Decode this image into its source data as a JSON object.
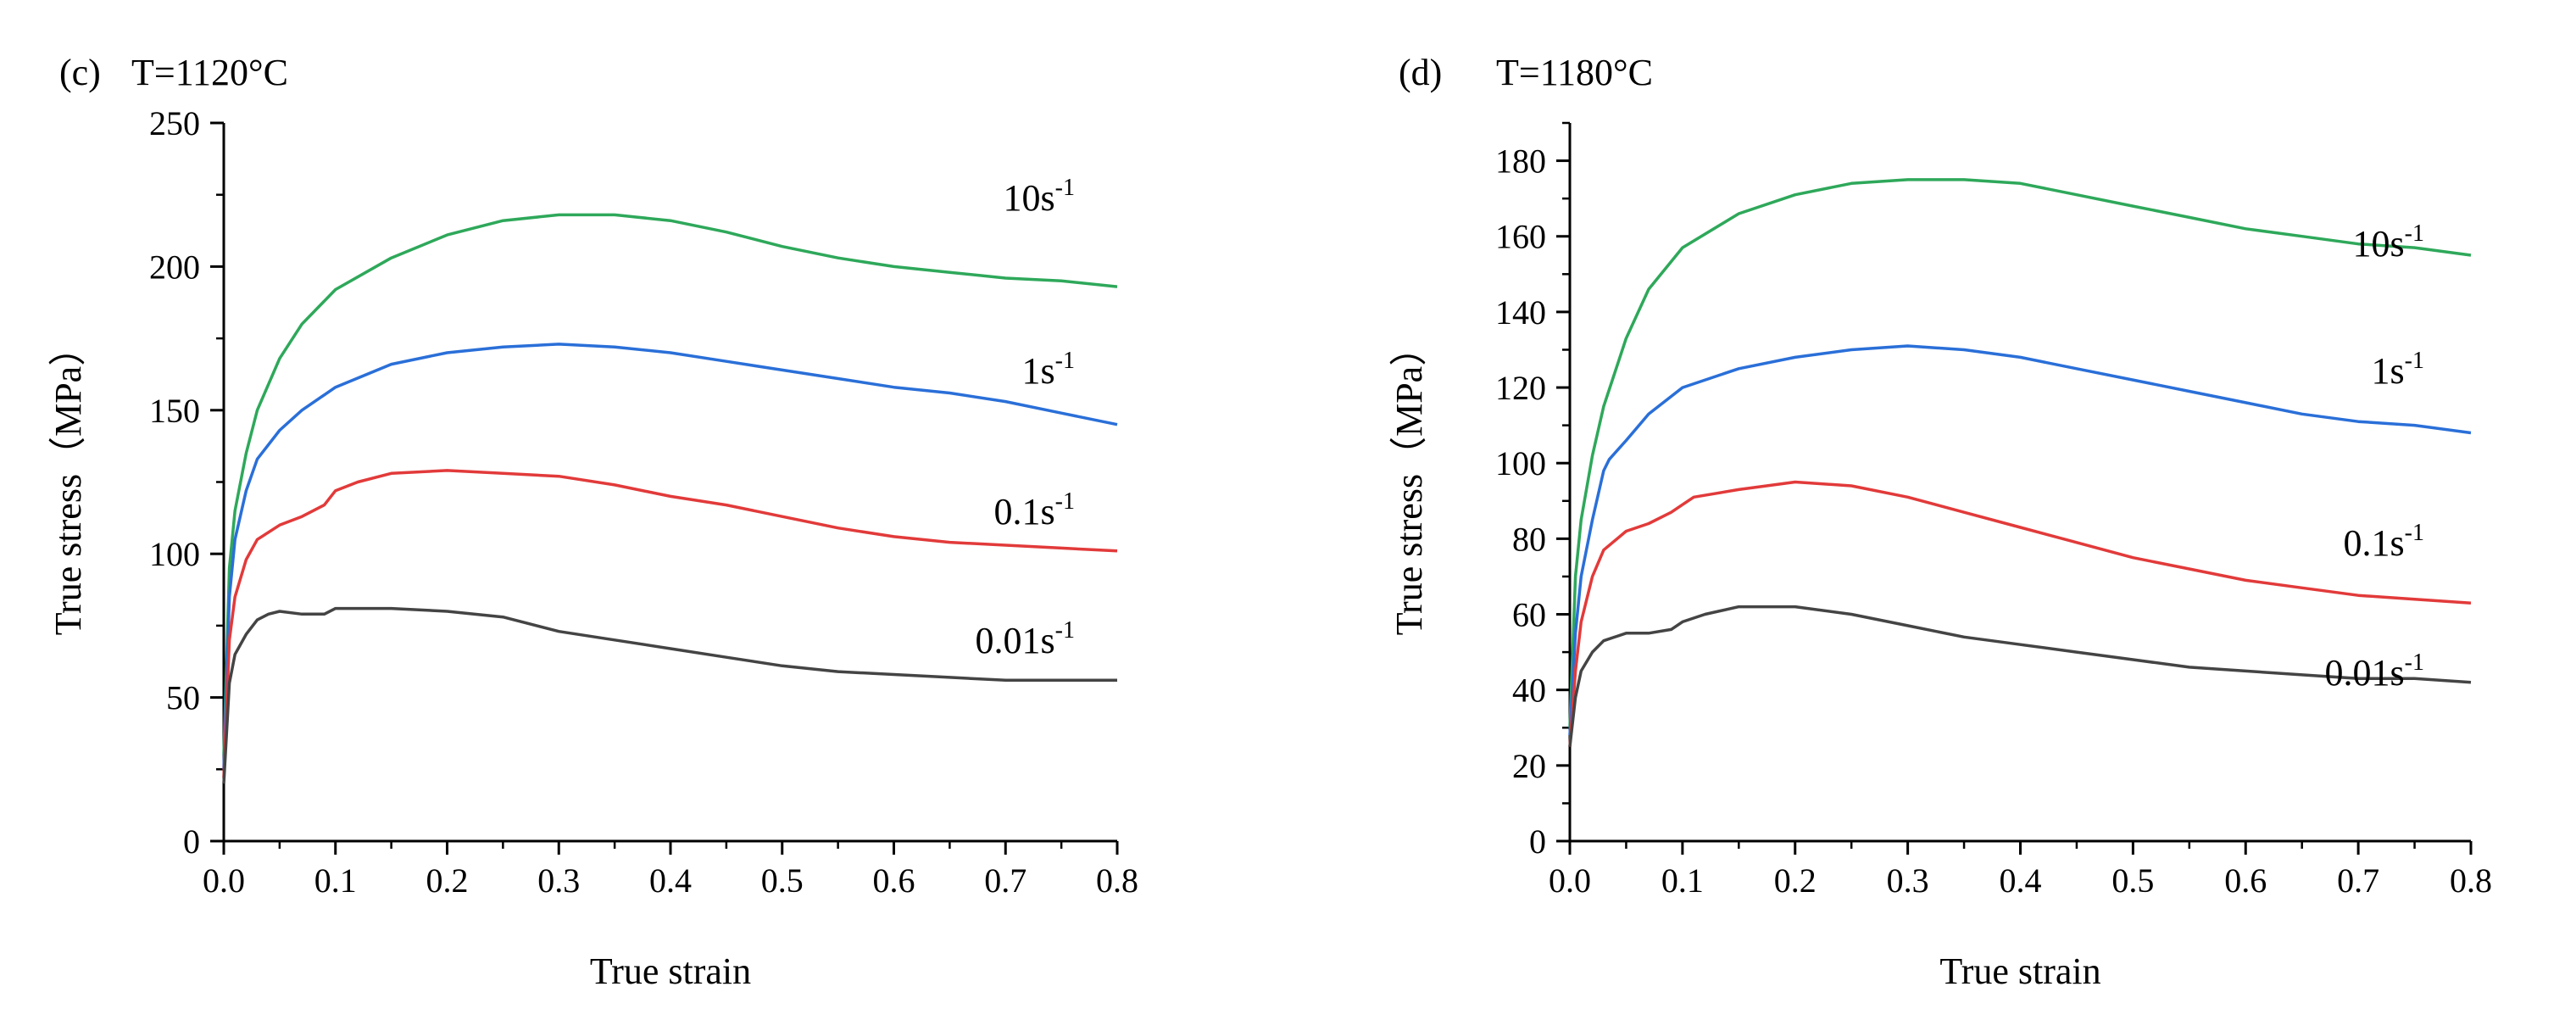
{
  "chart_data": [
    {
      "type": "line",
      "panel_label": "(c)",
      "title": "T=1120°C",
      "xlabel": "True strain",
      "ylabel": "True stress（MPa）",
      "xlim": [
        0,
        0.8
      ],
      "ylim": [
        0,
        250
      ],
      "xticks": [
        "0.0",
        "0.1",
        "0.2",
        "0.3",
        "0.4",
        "0.5",
        "0.6",
        "0.7",
        "0.8"
      ],
      "yticks": [
        "0",
        "50",
        "100",
        "150",
        "200",
        "250"
      ],
      "series": [
        {
          "name": "10s",
          "sup": "-1",
          "color": "#2ea85a",
          "points": [
            [
              0,
              30
            ],
            [
              0.005,
              95
            ],
            [
              0.01,
              115
            ],
            [
              0.02,
              135
            ],
            [
              0.03,
              150
            ],
            [
              0.05,
              168
            ],
            [
              0.07,
              180
            ],
            [
              0.1,
              192
            ],
            [
              0.15,
              203
            ],
            [
              0.2,
              211
            ],
            [
              0.25,
              216
            ],
            [
              0.3,
              218
            ],
            [
              0.35,
              218
            ],
            [
              0.4,
              216
            ],
            [
              0.45,
              212
            ],
            [
              0.5,
              207
            ],
            [
              0.55,
              203
            ],
            [
              0.6,
              200
            ],
            [
              0.65,
              198
            ],
            [
              0.7,
              196
            ],
            [
              0.75,
              195
            ],
            [
              0.8,
              193
            ]
          ]
        },
        {
          "name": "1s",
          "sup": "-1",
          "color": "#2a6fd8",
          "points": [
            [
              0,
              25
            ],
            [
              0.005,
              85
            ],
            [
              0.01,
              105
            ],
            [
              0.02,
              122
            ],
            [
              0.03,
              133
            ],
            [
              0.05,
              143
            ],
            [
              0.07,
              150
            ],
            [
              0.1,
              158
            ],
            [
              0.15,
              166
            ],
            [
              0.2,
              170
            ],
            [
              0.25,
              172
            ],
            [
              0.3,
              173
            ],
            [
              0.35,
              172
            ],
            [
              0.4,
              170
            ],
            [
              0.45,
              167
            ],
            [
              0.5,
              164
            ],
            [
              0.55,
              161
            ],
            [
              0.6,
              158
            ],
            [
              0.65,
              156
            ],
            [
              0.7,
              153
            ],
            [
              0.75,
              149
            ],
            [
              0.8,
              145
            ]
          ]
        },
        {
          "name": "0.1s",
          "sup": "-1",
          "color": "#e23a3a",
          "points": [
            [
              0,
              22
            ],
            [
              0.005,
              70
            ],
            [
              0.01,
              85
            ],
            [
              0.02,
              98
            ],
            [
              0.03,
              105
            ],
            [
              0.05,
              110
            ],
            [
              0.07,
              113
            ],
            [
              0.09,
              117
            ],
            [
              0.1,
              122
            ],
            [
              0.12,
              125
            ],
            [
              0.15,
              128
            ],
            [
              0.2,
              129
            ],
            [
              0.25,
              128
            ],
            [
              0.3,
              127
            ],
            [
              0.35,
              124
            ],
            [
              0.4,
              120
            ],
            [
              0.45,
              117
            ],
            [
              0.5,
              113
            ],
            [
              0.55,
              109
            ],
            [
              0.6,
              106
            ],
            [
              0.65,
              104
            ],
            [
              0.7,
              103
            ],
            [
              0.75,
              102
            ],
            [
              0.8,
              101
            ]
          ]
        },
        {
          "name": "0.01s",
          "sup": "-1",
          "color": "#444444",
          "points": [
            [
              0,
              20
            ],
            [
              0.005,
              55
            ],
            [
              0.01,
              65
            ],
            [
              0.02,
              72
            ],
            [
              0.03,
              77
            ],
            [
              0.04,
              79
            ],
            [
              0.05,
              80
            ],
            [
              0.07,
              79
            ],
            [
              0.09,
              79
            ],
            [
              0.1,
              81
            ],
            [
              0.12,
              81
            ],
            [
              0.15,
              81
            ],
            [
              0.2,
              80
            ],
            [
              0.25,
              78
            ],
            [
              0.3,
              73
            ],
            [
              0.35,
              70
            ],
            [
              0.4,
              67
            ],
            [
              0.45,
              64
            ],
            [
              0.5,
              61
            ],
            [
              0.55,
              59
            ],
            [
              0.6,
              58
            ],
            [
              0.65,
              57
            ],
            [
              0.7,
              56
            ],
            [
              0.75,
              56
            ],
            [
              0.8,
              56
            ]
          ]
        }
      ]
    },
    {
      "type": "line",
      "panel_label": "(d)",
      "title": "T=1180°C",
      "xlabel": "True strain",
      "ylabel": "True stress（MPa）",
      "xlim": [
        0,
        0.8
      ],
      "ylim": [
        0,
        190
      ],
      "xticks": [
        "0.0",
        "0.1",
        "0.2",
        "0.3",
        "0.4",
        "0.5",
        "0.6",
        "0.7",
        "0.8"
      ],
      "yticks": [
        "0",
        "20",
        "40",
        "60",
        "80",
        "100",
        "120",
        "140",
        "160",
        "180"
      ],
      "series": [
        {
          "name": "10s",
          "sup": "-1",
          "color": "#2ea85a",
          "points": [
            [
              0,
              30
            ],
            [
              0.005,
              70
            ],
            [
              0.01,
              85
            ],
            [
              0.02,
              102
            ],
            [
              0.03,
              115
            ],
            [
              0.05,
              133
            ],
            [
              0.07,
              146
            ],
            [
              0.1,
              157
            ],
            [
              0.15,
              166
            ],
            [
              0.2,
              171
            ],
            [
              0.25,
              174
            ],
            [
              0.3,
              175
            ],
            [
              0.35,
              175
            ],
            [
              0.4,
              174
            ],
            [
              0.45,
              171
            ],
            [
              0.5,
              168
            ],
            [
              0.55,
              165
            ],
            [
              0.6,
              162
            ],
            [
              0.65,
              160
            ],
            [
              0.7,
              158
            ],
            [
              0.75,
              157
            ],
            [
              0.8,
              155
            ]
          ]
        },
        {
          "name": "1s",
          "sup": "-1",
          "color": "#2a6fd8",
          "points": [
            [
              0,
              28
            ],
            [
              0.005,
              55
            ],
            [
              0.01,
              70
            ],
            [
              0.02,
              85
            ],
            [
              0.03,
              98
            ],
            [
              0.035,
              101
            ],
            [
              0.05,
              106
            ],
            [
              0.07,
              113
            ],
            [
              0.1,
              120
            ],
            [
              0.15,
              125
            ],
            [
              0.2,
              128
            ],
            [
              0.25,
              130
            ],
            [
              0.3,
              131
            ],
            [
              0.35,
              130
            ],
            [
              0.4,
              128
            ],
            [
              0.45,
              125
            ],
            [
              0.5,
              122
            ],
            [
              0.55,
              119
            ],
            [
              0.6,
              116
            ],
            [
              0.65,
              113
            ],
            [
              0.7,
              111
            ],
            [
              0.75,
              110
            ],
            [
              0.8,
              108
            ]
          ]
        },
        {
          "name": "0.1s",
          "sup": "-1",
          "color": "#e23a3a",
          "points": [
            [
              0,
              25
            ],
            [
              0.005,
              45
            ],
            [
              0.01,
              58
            ],
            [
              0.02,
              70
            ],
            [
              0.03,
              77
            ],
            [
              0.05,
              82
            ],
            [
              0.07,
              84
            ],
            [
              0.09,
              87
            ],
            [
              0.1,
              89
            ],
            [
              0.11,
              91
            ],
            [
              0.15,
              93
            ],
            [
              0.2,
              95
            ],
            [
              0.25,
              94
            ],
            [
              0.3,
              91
            ],
            [
              0.35,
              87
            ],
            [
              0.4,
              83
            ],
            [
              0.45,
              79
            ],
            [
              0.5,
              75
            ],
            [
              0.55,
              72
            ],
            [
              0.6,
              69
            ],
            [
              0.65,
              67
            ],
            [
              0.7,
              65
            ],
            [
              0.75,
              64
            ],
            [
              0.8,
              63
            ]
          ]
        },
        {
          "name": "0.01s",
          "sup": "-1",
          "color": "#444444",
          "points": [
            [
              0,
              25
            ],
            [
              0.005,
              38
            ],
            [
              0.01,
              45
            ],
            [
              0.02,
              50
            ],
            [
              0.03,
              53
            ],
            [
              0.05,
              55
            ],
            [
              0.07,
              55
            ],
            [
              0.09,
              56
            ],
            [
              0.1,
              58
            ],
            [
              0.12,
              60
            ],
            [
              0.15,
              62
            ],
            [
              0.2,
              62
            ],
            [
              0.25,
              60
            ],
            [
              0.3,
              57
            ],
            [
              0.35,
              54
            ],
            [
              0.4,
              52
            ],
            [
              0.45,
              50
            ],
            [
              0.5,
              48
            ],
            [
              0.55,
              46
            ],
            [
              0.6,
              45
            ],
            [
              0.65,
              44
            ],
            [
              0.7,
              43
            ],
            [
              0.75,
              43
            ],
            [
              0.8,
              42
            ]
          ]
        }
      ]
    }
  ]
}
